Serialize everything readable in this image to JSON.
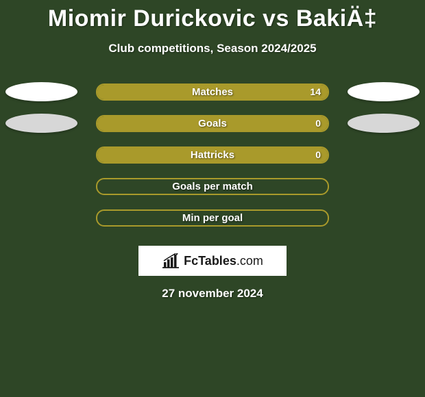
{
  "background_color": "#2e4626",
  "title": "Miomir Durickovic vs BakiÄ‡",
  "subtitle": "Club competitions, Season 2024/2025",
  "pill_border_color": "#a99a2b",
  "pill_fill_color": "#a99a2b",
  "ellipse_colors": {
    "white": "#ffffff",
    "gray": "#d7d7d7"
  },
  "text_color": "#ffffff",
  "stats": [
    {
      "label": "Matches",
      "value_left": "",
      "value_right": "14",
      "fill_pct": 100,
      "ellipse_left": "#ffffff",
      "ellipse_right": "#ffffff",
      "show_ellipses": true
    },
    {
      "label": "Goals",
      "value_left": "",
      "value_right": "0",
      "fill_pct": 100,
      "ellipse_left": "#d7d7d7",
      "ellipse_right": "#d7d7d7",
      "show_ellipses": true
    },
    {
      "label": "Hattricks",
      "value_left": "",
      "value_right": "0",
      "fill_pct": 100,
      "ellipse_left": "",
      "ellipse_right": "",
      "show_ellipses": false
    },
    {
      "label": "Goals per match",
      "value_left": "",
      "value_right": "",
      "fill_pct": 0,
      "ellipse_left": "",
      "ellipse_right": "",
      "show_ellipses": false
    },
    {
      "label": "Min per goal",
      "value_left": "",
      "value_right": "",
      "fill_pct": 0,
      "ellipse_left": "",
      "ellipse_right": "",
      "show_ellipses": false
    }
  ],
  "logo": {
    "brand": "FcTables",
    "suffix": ".com"
  },
  "date": "27 november 2024",
  "fonts": {
    "title_size": 34,
    "subtitle_size": 17,
    "label_size": 15
  }
}
